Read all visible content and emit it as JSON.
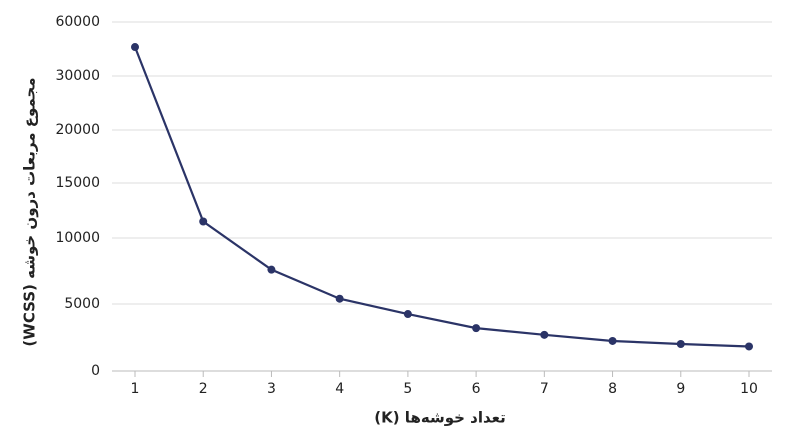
{
  "chart_data": {
    "type": "line",
    "x_label": "تعداد خوشه‌ها (K)",
    "y_label": "مجموع مربعات درون خوشه (WCSS)",
    "x": [
      1,
      2,
      3,
      4,
      5,
      6,
      7,
      8,
      9,
      10
    ],
    "series": [
      {
        "color": "#2b3467",
        "values": [
          46100,
          11500,
          7600,
          5400,
          4250,
          3200,
          2700,
          2240,
          2015,
          1830
        ]
      }
    ],
    "xlim": [
      1,
      10
    ],
    "xticks": [
      1,
      2,
      3,
      4,
      5,
      6,
      7,
      8,
      9,
      10
    ],
    "ylim": [
      0,
      60000
    ],
    "yticks": [
      0,
      5000,
      10000,
      15000,
      20000,
      30000,
      60000
    ],
    "grid": true
  }
}
